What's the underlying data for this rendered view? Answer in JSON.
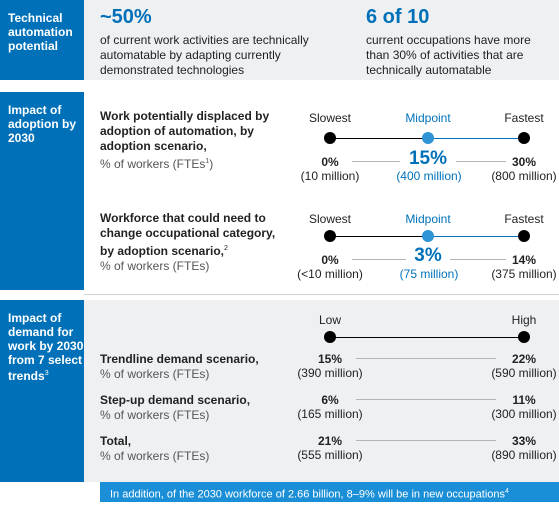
{
  "section1": {
    "side_label": "Technical automation potential",
    "stat1": {
      "value": "~50%",
      "text": "of current work activities are technically automatable by adapting currently demonstrated technologies"
    },
    "stat2": {
      "value": "6 of 10",
      "text": "current occupations have more than 30% of activities that are technically automatable"
    }
  },
  "section2": {
    "side_label": "Impact of adoption by 2030",
    "scale_labels": [
      "Slowest",
      "Midpoint",
      "Fastest"
    ],
    "rows": [
      {
        "title": "Work potentially displaced by adoption of automation, by adoption scenario,",
        "sub": "% of workers (FTEs",
        "sub_sup": "1",
        "sub_end": ")",
        "low_pct": "0%",
        "low_mil": "(10 million)",
        "mid_pct": "15%",
        "mid_mil": "(400 million)",
        "high_pct": "30%",
        "high_mil": "(800 million)"
      },
      {
        "title": "Workforce that could need to change occupational category, by adoption scenario,",
        "title_sup": "2",
        "sub": "% of workers (FTEs)",
        "low_pct": "0%",
        "low_mil": "(<10 million)",
        "mid_pct": "3%",
        "mid_mil": "(75 million)",
        "high_pct": "14%",
        "high_mil": "(375 million)"
      }
    ]
  },
  "section3": {
    "side_label": "Impact of demand for work by 2030 from 7 select trends",
    "side_sup": "3",
    "scale_labels": [
      "Low",
      "High"
    ],
    "rows": [
      {
        "title": "Trendline demand scenario,",
        "sub": "% of workers (FTEs)",
        "low_pct": "15%",
        "low_mil": "(390 million)",
        "high_pct": "22%",
        "high_mil": "(590 million)"
      },
      {
        "title": "Step-up demand scenario,",
        "sub": "% of workers (FTEs)",
        "low_pct": "6%",
        "low_mil": "(165 million)",
        "high_pct": "11%",
        "high_mil": "(300 million)"
      },
      {
        "title": "Total,",
        "sub": "% of workers (FTEs)",
        "low_pct": "21%",
        "low_mil": "(555 million)",
        "high_pct": "33%",
        "high_mil": "(890 million)"
      }
    ]
  },
  "footer": {
    "text": "In addition, of the 2030 workforce of 2.66 billion, 8–9% will be in new occupations",
    "sup": "4"
  },
  "colors": {
    "primary_blue": "#0071b9",
    "light_blue": "#2e94d6",
    "footer_blue": "#1a8fd7",
    "band_gray": "#eef0f2"
  }
}
